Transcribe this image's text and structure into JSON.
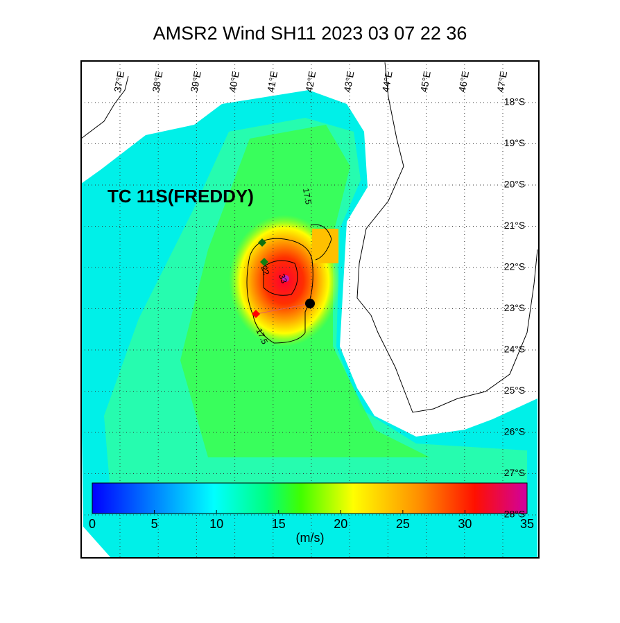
{
  "title": "AMSR2 Wind  SH11  2023 03 07 22 36",
  "storm_label": "TC 11S(FREDDY)",
  "contour_labels": [
    "17.5",
    "22",
    "33",
    "17.5"
  ],
  "map": {
    "xticks": [
      {
        "value": 37,
        "label": "37°E"
      },
      {
        "value": 38,
        "label": "38°E"
      },
      {
        "value": 39,
        "label": "39°E"
      },
      {
        "value": 40,
        "label": "40°E"
      },
      {
        "value": 41,
        "label": "41°E"
      },
      {
        "value": 42,
        "label": "42°E"
      },
      {
        "value": 43,
        "label": "43°E"
      },
      {
        "value": 44,
        "label": "44°E"
      },
      {
        "value": 45,
        "label": "45°E"
      },
      {
        "value": 46,
        "label": "46°E"
      },
      {
        "value": 47,
        "label": "47°E"
      }
    ],
    "yticks": [
      {
        "value": -18,
        "label": "18°S"
      },
      {
        "value": -19,
        "label": "19°S"
      },
      {
        "value": -20,
        "label": "20°S"
      },
      {
        "value": -21,
        "label": "21°S"
      },
      {
        "value": -22,
        "label": "22°S"
      },
      {
        "value": -23,
        "label": "23°S"
      },
      {
        "value": -24,
        "label": "24°S"
      },
      {
        "value": -25,
        "label": "25°S"
      },
      {
        "value": -26,
        "label": "26°S"
      },
      {
        "value": -27,
        "label": "27°S"
      },
      {
        "value": -28,
        "label": "28°S"
      }
    ]
  },
  "colorbar": {
    "lim": [
      0,
      35
    ],
    "ticks": [
      0,
      5,
      10,
      15,
      20,
      25,
      30,
      35
    ],
    "label": "(m/s)"
  }
}
